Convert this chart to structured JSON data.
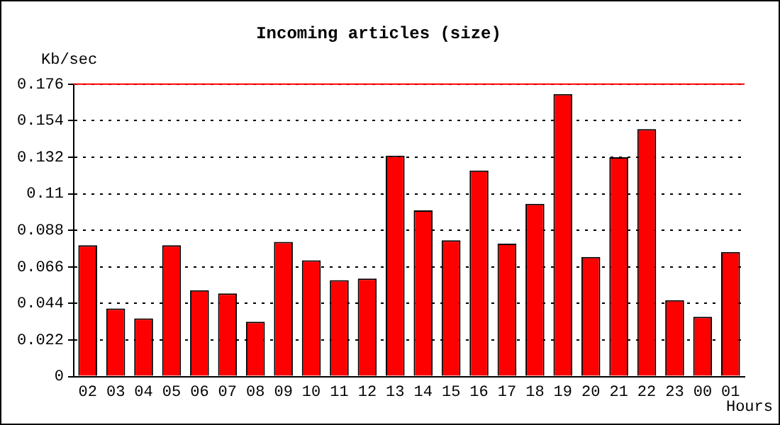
{
  "chart_data": {
    "type": "bar",
    "title": "Incoming articles (size)",
    "xlabel": "Hours",
    "ylabel": "Kb/sec",
    "categories": [
      "02",
      "03",
      "04",
      "05",
      "06",
      "07",
      "08",
      "09",
      "10",
      "11",
      "12",
      "13",
      "14",
      "15",
      "16",
      "17",
      "18",
      "19",
      "20",
      "21",
      "22",
      "23",
      "00",
      "01"
    ],
    "series": [
      {
        "color": "#ff0000",
        "values": [
          0.079,
          0.041,
          0.035,
          0.079,
          0.052,
          0.05,
          0.033,
          0.081,
          0.07,
          0.058,
          0.059,
          0.133,
          0.1,
          0.082,
          0.124,
          0.08,
          0.104,
          0.17,
          0.072,
          0.132,
          0.149,
          0.046,
          0.036,
          0.075
        ]
      }
    ],
    "ylim": [
      0,
      0.176
    ],
    "yticks": [
      0,
      0.022,
      0.044,
      0.066,
      0.088,
      0.11,
      0.132,
      0.154,
      0.176
    ],
    "grid": "y",
    "ref_lines": [
      {
        "axis": "y",
        "value": 0.176,
        "color": "#ff0000"
      }
    ]
  }
}
